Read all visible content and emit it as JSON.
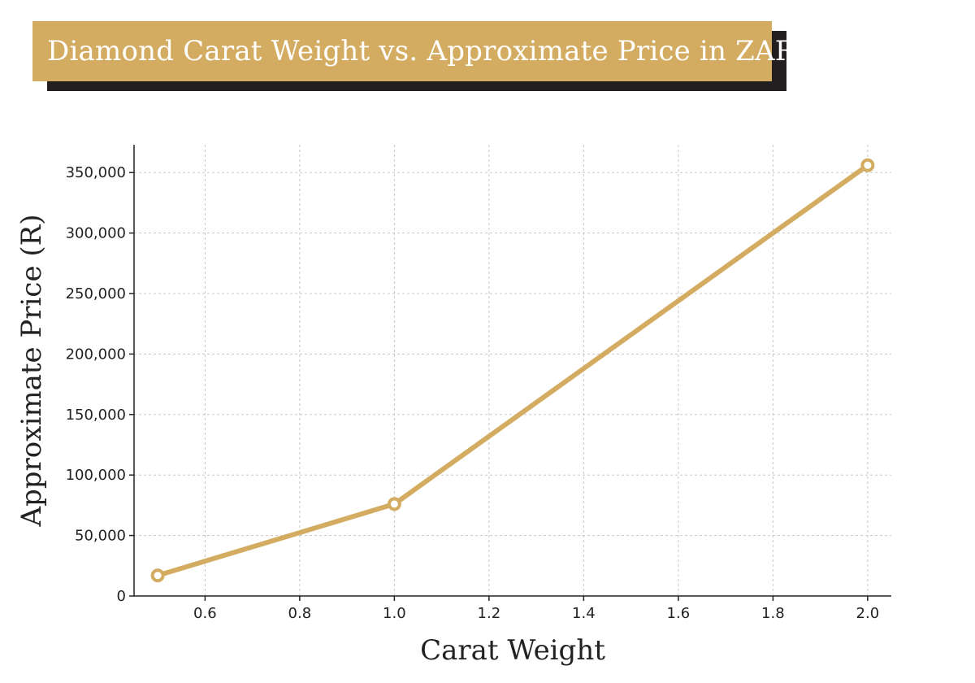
{
  "chart_data": {
    "type": "line",
    "title": "Diamond Carat Weight vs. Approximate Price in ZAR",
    "xlabel": "Carat Weight",
    "ylabel": "Approximate Price (R)",
    "x": [
      0.5,
      1.0,
      2.0
    ],
    "series": [
      {
        "values": [
          17000,
          76000,
          356000
        ]
      }
    ],
    "xlim": [
      0.45,
      2.05
    ],
    "ylim": [
      0,
      373000
    ],
    "xticks": [
      0.6,
      0.8,
      1.0,
      1.2,
      1.4,
      1.6,
      1.8,
      2.0
    ],
    "xtick_labels": [
      "0.6",
      "0.8",
      "1.0",
      "1.2",
      "1.4",
      "1.6",
      "1.8",
      "2.0"
    ],
    "yticks": [
      0,
      50000,
      100000,
      150000,
      200000,
      250000,
      300000,
      350000
    ],
    "ytick_labels": [
      "0",
      "50,000",
      "100,000",
      "150,000",
      "200,000",
      "250,000",
      "300,000",
      "350,000"
    ],
    "grid": true,
    "line_color": "#d4ac61",
    "title_banner_color": "#d4ac61",
    "title_shadow_color": "#231f20"
  }
}
